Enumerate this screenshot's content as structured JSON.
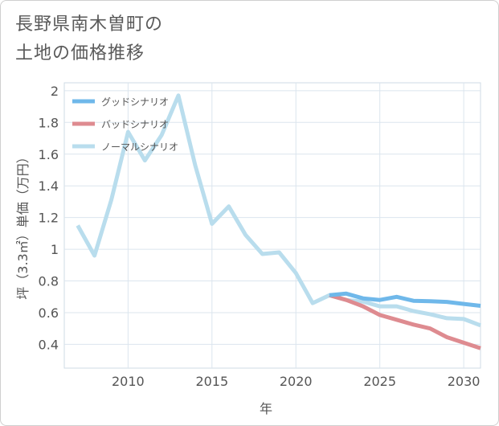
{
  "title": {
    "line1": "長野県南木曽町の",
    "line2": "土地の価格推移"
  },
  "chart_data": {
    "type": "line",
    "xlabel": "年",
    "ylabel": "坪（3.3㎡）単価（万円）",
    "xlim": [
      2006.2,
      2031
    ],
    "ylim": [
      0.25,
      2.05
    ],
    "x_ticks": [
      2010,
      2015,
      2020,
      2025,
      2030
    ],
    "y_ticks": [
      0.4,
      0.6,
      0.8,
      1,
      1.2,
      1.4,
      1.6,
      1.8,
      2
    ],
    "x_tick_labels": [
      "2010",
      "2015",
      "2020",
      "2025",
      "2030"
    ],
    "y_tick_labels": [
      "0.4",
      "0.6",
      "0.8",
      "1",
      "1.2",
      "1.4",
      "1.6",
      "1.8",
      "2"
    ],
    "grid": true,
    "legend_position": "top-left",
    "series": [
      {
        "name": "グッドシナリオ",
        "color": "#6fb8ea",
        "x": [
          2022,
          2023,
          2024,
          2025,
          2026,
          2027,
          2028,
          2029,
          2030,
          2031
        ],
        "values": [
          0.71,
          0.72,
          0.69,
          0.68,
          0.7,
          0.675,
          0.672,
          0.668,
          0.655,
          0.643
        ]
      },
      {
        "name": "バッドシナリオ",
        "color": "#de8b90",
        "x": [
          2022,
          2023,
          2024,
          2025,
          2026,
          2027,
          2028,
          2029,
          2030,
          2031
        ],
        "values": [
          0.71,
          0.68,
          0.64,
          0.585,
          0.555,
          0.525,
          0.5,
          0.445,
          0.41,
          0.375
        ]
      },
      {
        "name": "ノーマルシナリオ",
        "color": "#b9dded",
        "x": [
          2007,
          2008,
          2009,
          2010,
          2011,
          2012,
          2013,
          2014,
          2015,
          2016,
          2017,
          2018,
          2019,
          2020,
          2021,
          2022,
          2023,
          2024,
          2025,
          2026,
          2027,
          2028,
          2029,
          2030,
          2031
        ],
        "values": [
          1.15,
          0.96,
          1.31,
          1.74,
          1.56,
          1.72,
          1.97,
          1.53,
          1.16,
          1.27,
          1.09,
          0.97,
          0.98,
          0.85,
          0.66,
          0.71,
          0.68,
          0.67,
          0.64,
          0.64,
          0.61,
          0.59,
          0.565,
          0.56,
          0.52
        ]
      }
    ]
  }
}
